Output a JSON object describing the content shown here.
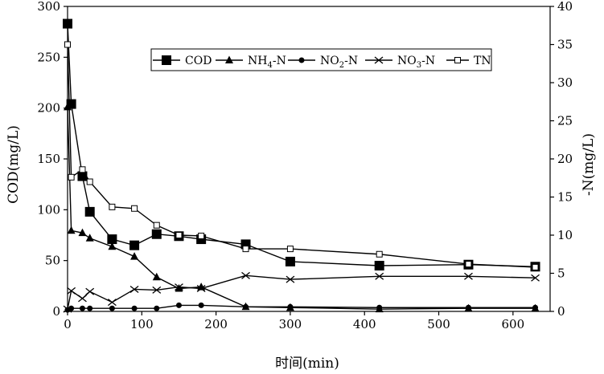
{
  "chart_data": {
    "type": "line",
    "xlabel": "时间(min)",
    "ylabel_left": "COD(mg/L)",
    "ylabel_right": "-N(mg/L)",
    "xlim": [
      0,
      650
    ],
    "ylim_left": [
      0,
      300
    ],
    "ylim_right": [
      0,
      40
    ],
    "x_ticks": [
      0,
      100,
      200,
      300,
      400,
      500,
      600
    ],
    "y_left_ticks": [
      0,
      50,
      100,
      150,
      200,
      250,
      300
    ],
    "y_right_ticks": [
      0,
      5,
      10,
      15,
      20,
      25,
      30,
      35,
      40
    ],
    "grid": false,
    "legend_position": "top-right",
    "series": [
      {
        "name": "COD",
        "axis": "left",
        "marker": "filled-square",
        "x": [
          0,
          5,
          20,
          30,
          60,
          90,
          120,
          150,
          180,
          240,
          300,
          420,
          540,
          630
        ],
        "y": [
          283,
          204,
          133,
          98,
          71,
          65,
          76,
          74,
          71,
          66,
          49,
          45,
          46,
          44
        ]
      },
      {
        "name": "NH4-N",
        "legend_main": "NH",
        "legend_sub": "4",
        "legend_tail": "-N",
        "axis": "right",
        "marker": "filled-triangle",
        "x": [
          0,
          5,
          20,
          30,
          60,
          90,
          120,
          150,
          180,
          240,
          300,
          420,
          540,
          630
        ],
        "y": [
          26.8,
          10.6,
          10.3,
          9.6,
          8.5,
          7.2,
          4.5,
          3.0,
          3.2,
          0.6,
          0.5,
          0.3,
          0.4,
          0.4
        ]
      },
      {
        "name": "NO2-N",
        "legend_main": "NO",
        "legend_sub": "2",
        "legend_tail": "-N",
        "axis": "right",
        "marker": "filled-circle",
        "x": [
          0,
          5,
          20,
          30,
          60,
          90,
          120,
          150,
          180,
          240,
          300,
          420,
          540,
          630
        ],
        "y": [
          0.2,
          0.4,
          0.4,
          0.4,
          0.4,
          0.4,
          0.4,
          0.8,
          0.8,
          0.6,
          0.6,
          0.5,
          0.5,
          0.5
        ]
      },
      {
        "name": "NO3-N",
        "legend_main": "NO",
        "legend_sub": "3",
        "legend_tail": "-N",
        "axis": "right",
        "marker": "x-cross",
        "x": [
          0,
          5,
          20,
          30,
          60,
          90,
          120,
          150,
          180,
          240,
          300,
          420,
          540,
          630
        ],
        "y": [
          0.3,
          2.7,
          1.7,
          2.6,
          1.2,
          2.9,
          2.8,
          3.2,
          3.0,
          4.7,
          4.2,
          4.6,
          4.6,
          4.4
        ]
      },
      {
        "name": "TN",
        "axis": "right",
        "marker": "open-square",
        "x": [
          0,
          5,
          20,
          30,
          60,
          90,
          120,
          150,
          180,
          240,
          300,
          420,
          540,
          630
        ],
        "y": [
          35.0,
          17.6,
          18.6,
          17.0,
          13.7,
          13.5,
          11.3,
          10.0,
          9.9,
          8.2,
          8.2,
          7.5,
          6.2,
          5.8
        ]
      }
    ]
  }
}
